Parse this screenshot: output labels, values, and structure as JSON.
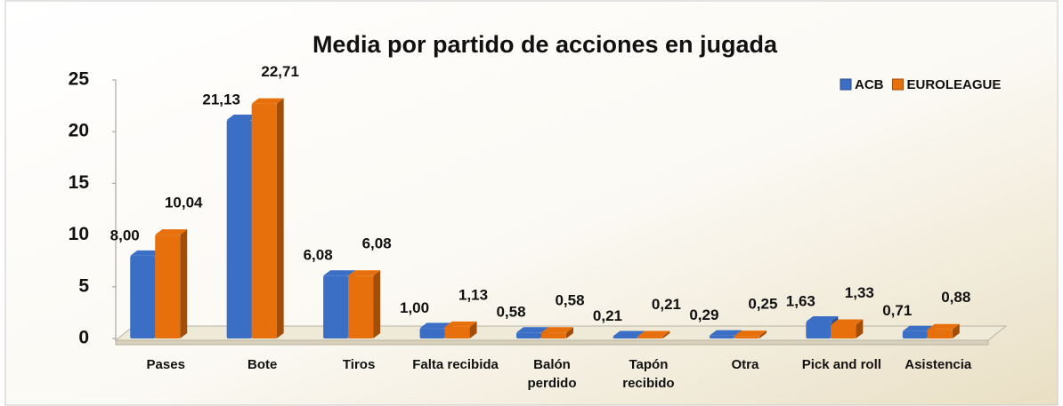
{
  "chart_data": {
    "type": "bar",
    "title": "Media por partido de acciones en jugada",
    "categories": [
      "Pases",
      "Bote",
      "Tiros",
      "Falta recibida",
      "Balón perdido",
      "Tapón recibido",
      "Otra",
      "Pick and roll",
      "Asistencia"
    ],
    "series": [
      {
        "name": "ACB",
        "color": "#3b6fc6",
        "values": [
          8.0,
          21.13,
          6.08,
          1.0,
          0.58,
          0.21,
          0.29,
          1.63,
          0.71
        ],
        "value_labels": [
          "8,00",
          "21,13",
          "6,08",
          "1,00",
          "0,58",
          "0,21",
          "0,29",
          "1,63",
          "0,71"
        ]
      },
      {
        "name": "EUROLEAGUE",
        "color": "#e8700c",
        "values": [
          10.04,
          22.71,
          6.08,
          1.13,
          0.58,
          0.21,
          0.25,
          1.33,
          0.88
        ],
        "value_labels": [
          "10,04",
          "22,71",
          "6,08",
          "1,13",
          "0,58",
          "0,21",
          "0,25",
          "1,33",
          "0,88"
        ]
      }
    ],
    "ylim": [
      0,
      25
    ],
    "yticks": [
      0,
      5,
      10,
      15,
      20,
      25
    ],
    "grid": false,
    "legend": "top-right"
  }
}
